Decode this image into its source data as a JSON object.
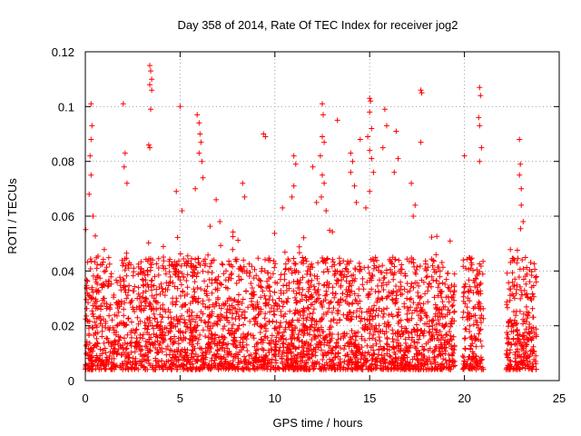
{
  "chart_data": {
    "type": "scatter",
    "title": "Day 358 of 2014, Rate Of TEC Index for receiver jog2",
    "xlabel": "GPS time / hours",
    "ylabel": "ROTI / TECUs",
    "xlim": [
      0,
      25
    ],
    "ylim": [
      0,
      0.12
    ],
    "x_ticks": [
      0,
      5,
      10,
      15,
      20,
      25
    ],
    "x_tick_labels": [
      "0",
      "5",
      "10",
      "15",
      "20",
      "25"
    ],
    "y_ticks": [
      0,
      0.02,
      0.04,
      0.06,
      0.08,
      0.1,
      0.12
    ],
    "y_tick_labels": [
      "0",
      "0.02",
      "0.04",
      "0.06",
      "0.08",
      "0.1",
      "0.12"
    ],
    "grid": true,
    "marker": "+",
    "series_color": "#ff0000",
    "dense_band": {
      "x_range": [
        0,
        23.8
      ],
      "y_range": [
        0.004,
        0.045
      ],
      "gap_hours": [
        [
          19.5,
          19.9
        ],
        [
          21.0,
          22.2
        ]
      ],
      "points_per_hour": 420
    },
    "outliers": [
      {
        "x": 0.3,
        "y": 0.101
      },
      {
        "x": 0.35,
        "y": 0.093
      },
      {
        "x": 0.3,
        "y": 0.088
      },
      {
        "x": 0.25,
        "y": 0.082
      },
      {
        "x": 0.3,
        "y": 0.075
      },
      {
        "x": 0.2,
        "y": 0.068
      },
      {
        "x": 0.4,
        "y": 0.06
      },
      {
        "x": 2.0,
        "y": 0.101
      },
      {
        "x": 2.1,
        "y": 0.083
      },
      {
        "x": 2.05,
        "y": 0.078
      },
      {
        "x": 2.2,
        "y": 0.072
      },
      {
        "x": 3.4,
        "y": 0.115
      },
      {
        "x": 3.45,
        "y": 0.113
      },
      {
        "x": 3.5,
        "y": 0.11
      },
      {
        "x": 3.4,
        "y": 0.108
      },
      {
        "x": 3.5,
        "y": 0.106
      },
      {
        "x": 3.45,
        "y": 0.099
      },
      {
        "x": 3.35,
        "y": 0.086
      },
      {
        "x": 3.4,
        "y": 0.085
      },
      {
        "x": 5.0,
        "y": 0.1
      },
      {
        "x": 4.8,
        "y": 0.069
      },
      {
        "x": 5.1,
        "y": 0.062
      },
      {
        "x": 5.9,
        "y": 0.097
      },
      {
        "x": 6.0,
        "y": 0.094
      },
      {
        "x": 6.05,
        "y": 0.09
      },
      {
        "x": 6.1,
        "y": 0.087
      },
      {
        "x": 6.0,
        "y": 0.083
      },
      {
        "x": 6.15,
        "y": 0.08
      },
      {
        "x": 6.2,
        "y": 0.074
      },
      {
        "x": 5.8,
        "y": 0.07
      },
      {
        "x": 6.9,
        "y": 0.066
      },
      {
        "x": 7.1,
        "y": 0.058
      },
      {
        "x": 8.3,
        "y": 0.072
      },
      {
        "x": 8.4,
        "y": 0.067
      },
      {
        "x": 9.4,
        "y": 0.09
      },
      {
        "x": 9.5,
        "y": 0.089
      },
      {
        "x": 10.4,
        "y": 0.063
      },
      {
        "x": 11.0,
        "y": 0.082
      },
      {
        "x": 11.1,
        "y": 0.079
      },
      {
        "x": 11.0,
        "y": 0.071
      },
      {
        "x": 10.9,
        "y": 0.067
      },
      {
        "x": 12.0,
        "y": 0.078
      },
      {
        "x": 12.2,
        "y": 0.065
      },
      {
        "x": 12.5,
        "y": 0.101
      },
      {
        "x": 12.55,
        "y": 0.097
      },
      {
        "x": 12.5,
        "y": 0.089
      },
      {
        "x": 12.6,
        "y": 0.087
      },
      {
        "x": 12.4,
        "y": 0.082
      },
      {
        "x": 12.5,
        "y": 0.075
      },
      {
        "x": 12.6,
        "y": 0.072
      },
      {
        "x": 12.45,
        "y": 0.067
      },
      {
        "x": 12.7,
        "y": 0.062
      },
      {
        "x": 13.3,
        "y": 0.095
      },
      {
        "x": 14.0,
        "y": 0.083
      },
      {
        "x": 14.1,
        "y": 0.08
      },
      {
        "x": 14.0,
        "y": 0.076
      },
      {
        "x": 14.2,
        "y": 0.071
      },
      {
        "x": 14.3,
        "y": 0.065
      },
      {
        "x": 15.0,
        "y": 0.103
      },
      {
        "x": 15.05,
        "y": 0.102
      },
      {
        "x": 15.0,
        "y": 0.098
      },
      {
        "x": 15.1,
        "y": 0.092
      },
      {
        "x": 14.9,
        "y": 0.089
      },
      {
        "x": 15.0,
        "y": 0.084
      },
      {
        "x": 15.1,
        "y": 0.081
      },
      {
        "x": 15.2,
        "y": 0.076
      },
      {
        "x": 15.0,
        "y": 0.069
      },
      {
        "x": 14.8,
        "y": 0.063
      },
      {
        "x": 14.5,
        "y": 0.088
      },
      {
        "x": 15.8,
        "y": 0.099
      },
      {
        "x": 15.9,
        "y": 0.093
      },
      {
        "x": 15.7,
        "y": 0.085
      },
      {
        "x": 16.4,
        "y": 0.091
      },
      {
        "x": 16.5,
        "y": 0.081
      },
      {
        "x": 16.3,
        "y": 0.076
      },
      {
        "x": 17.2,
        "y": 0.072
      },
      {
        "x": 17.4,
        "y": 0.064
      },
      {
        "x": 17.3,
        "y": 0.06
      },
      {
        "x": 17.7,
        "y": 0.106
      },
      {
        "x": 17.75,
        "y": 0.105
      },
      {
        "x": 17.7,
        "y": 0.087
      },
      {
        "x": 20.8,
        "y": 0.107
      },
      {
        "x": 20.85,
        "y": 0.104
      },
      {
        "x": 20.75,
        "y": 0.096
      },
      {
        "x": 20.8,
        "y": 0.093
      },
      {
        "x": 20.9,
        "y": 0.085
      },
      {
        "x": 20.8,
        "y": 0.08
      },
      {
        "x": 20.0,
        "y": 0.082
      },
      {
        "x": 22.9,
        "y": 0.088
      },
      {
        "x": 22.95,
        "y": 0.079
      },
      {
        "x": 22.9,
        "y": 0.075
      },
      {
        "x": 23.0,
        "y": 0.07
      },
      {
        "x": 23.0,
        "y": 0.064
      },
      {
        "x": 23.1,
        "y": 0.058
      }
    ]
  }
}
